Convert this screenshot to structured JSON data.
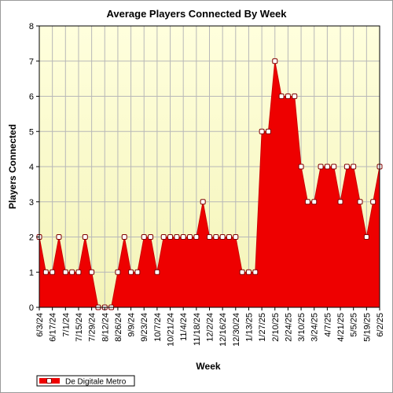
{
  "chart_data": {
    "type": "area",
    "title": "Average Players Connected By Week",
    "xlabel": "Week",
    "ylabel": "Players Connected",
    "ylim": [
      0,
      8
    ],
    "yticks": [
      0,
      1,
      2,
      3,
      4,
      5,
      6,
      7,
      8
    ],
    "grid": true,
    "legend_position": "bottom-left",
    "colors": {
      "plot_background_top": "#ffffdd",
      "plot_background_bottom": "#f4f4b8",
      "fill": "#ee0000",
      "line": "#cc0000",
      "marker_fill": "#ffffff",
      "marker_stroke": "#800000",
      "grid": "#b8b8b8"
    },
    "x_tick_labels": [
      "6/3/24",
      "6/17/24",
      "7/1/24",
      "7/15/24",
      "7/29/24",
      "8/12/24",
      "8/26/24",
      "9/9/24",
      "9/23/24",
      "10/7/24",
      "10/21/24",
      "11/4/24",
      "11/18/24",
      "12/2/24",
      "12/16/24",
      "12/30/24",
      "1/13/25",
      "1/27/25",
      "2/10/25",
      "2/24/25",
      "3/10/25",
      "3/24/25",
      "4/7/25",
      "4/21/25",
      "5/5/25",
      "5/19/25",
      "6/2/25"
    ],
    "series": [
      {
        "name": "De Digitale Metro",
        "x": [
          "6/3/24",
          "6/10/24",
          "6/17/24",
          "6/24/24",
          "7/1/24",
          "7/8/24",
          "7/15/24",
          "7/22/24",
          "7/29/24",
          "8/5/24",
          "8/12/24",
          "8/19/24",
          "8/26/24",
          "9/2/24",
          "9/9/24",
          "9/16/24",
          "9/23/24",
          "9/30/24",
          "10/7/24",
          "10/14/24",
          "10/21/24",
          "10/28/24",
          "11/4/24",
          "11/11/24",
          "11/18/24",
          "11/25/24",
          "12/2/24",
          "12/9/24",
          "12/16/24",
          "12/23/24",
          "12/30/24",
          "1/6/25",
          "1/13/25",
          "1/20/25",
          "1/27/25",
          "2/3/25",
          "2/10/25",
          "2/17/25",
          "2/24/25",
          "3/3/25",
          "3/10/25",
          "3/17/25",
          "3/24/25",
          "3/31/25",
          "4/7/25",
          "4/14/25",
          "4/21/25",
          "4/28/25",
          "5/5/25",
          "5/12/25",
          "5/19/25",
          "5/26/25",
          "6/2/25"
        ],
        "values": [
          2,
          1,
          1,
          2,
          1,
          1,
          1,
          2,
          1,
          0,
          0,
          0,
          1,
          2,
          1,
          1,
          2,
          2,
          1,
          2,
          2,
          2,
          2,
          2,
          2,
          3,
          2,
          2,
          2,
          2,
          2,
          1,
          1,
          1,
          5,
          5,
          7,
          6,
          6,
          6,
          4,
          3,
          3,
          4,
          4,
          4,
          3,
          4,
          4,
          3,
          2,
          3,
          4
        ]
      }
    ]
  }
}
